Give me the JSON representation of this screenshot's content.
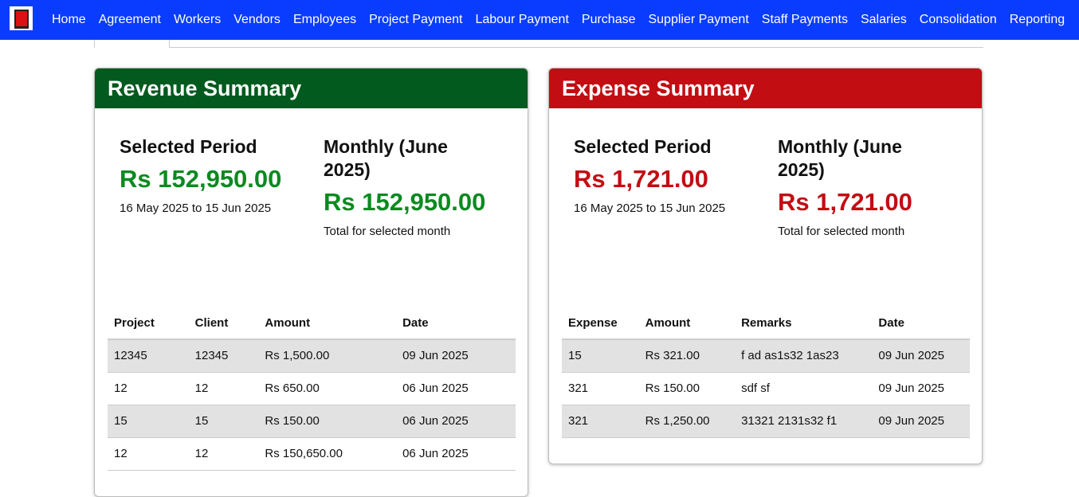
{
  "nav": {
    "items": [
      "Home",
      "Agreement",
      "Workers",
      "Vendors",
      "Employees",
      "Project Payment",
      "Labour Payment",
      "Purchase",
      "Supplier Payment",
      "Staff Payments",
      "Salaries",
      "Consolidation",
      "Reporting"
    ],
    "color": "#0a3cff"
  },
  "revenue": {
    "title": "Revenue Summary",
    "color": "#025a1e",
    "amount_color": "#0b8a1f",
    "selected": {
      "label": "Selected Period",
      "amount": "Rs 152,950.00",
      "sub": "16 May 2025 to 15 Jun 2025"
    },
    "monthly": {
      "label": "Monthly (June 2025)",
      "amount": "Rs 152,950.00",
      "sub": "Total for selected month"
    },
    "columns": [
      "Project",
      "Client",
      "Amount",
      "Date"
    ],
    "rows": [
      [
        "12345",
        "12345",
        "Rs 1,500.00",
        "09 Jun 2025"
      ],
      [
        "12",
        "12",
        "Rs 650.00",
        "06 Jun 2025"
      ],
      [
        "15",
        "15",
        "Rs 150.00",
        "06 Jun 2025"
      ],
      [
        "12",
        "12",
        "Rs 150,650.00",
        "06 Jun 2025"
      ]
    ]
  },
  "expense": {
    "title": "Expense Summary",
    "color": "#c20d13",
    "amount_color": "#c20d13",
    "selected": {
      "label": "Selected Period",
      "amount": "Rs 1,721.00",
      "sub": "16 May 2025 to 15 Jun 2025"
    },
    "monthly": {
      "label": "Monthly (June 2025)",
      "amount": "Rs 1,721.00",
      "sub": "Total for selected month"
    },
    "columns": [
      "Expense",
      "Amount",
      "Remarks",
      "Date"
    ],
    "rows": [
      [
        "15",
        "Rs 321.00",
        "f ad as1s32 1as23",
        "09 Jun 2025"
      ],
      [
        "321",
        "Rs 150.00",
        "sdf sf",
        "09 Jun 2025"
      ],
      [
        "321",
        "Rs 1,250.00",
        "31321 2131s32 f1",
        "09 Jun 2025"
      ]
    ]
  }
}
